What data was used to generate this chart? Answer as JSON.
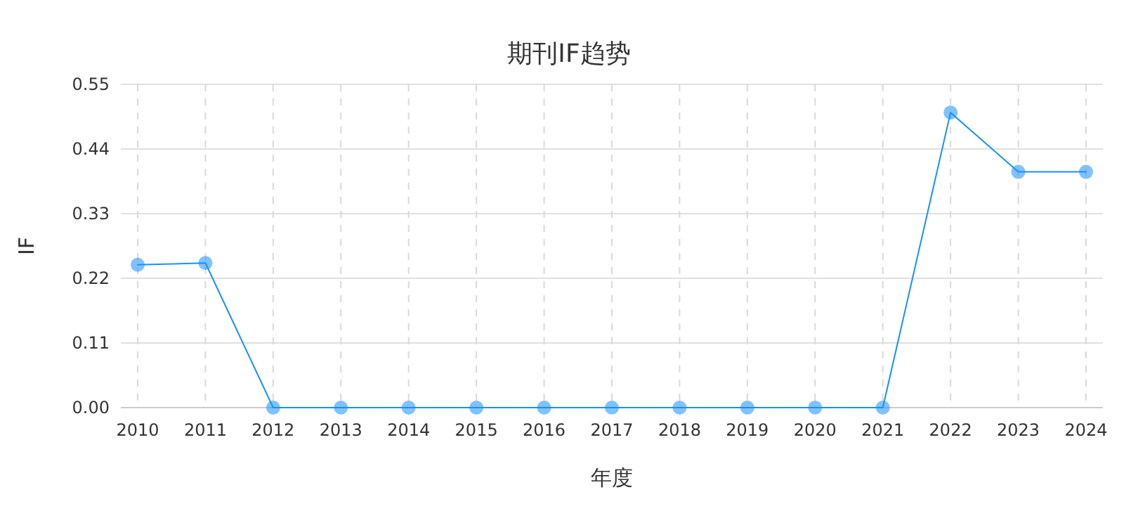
{
  "chart_data": {
    "type": "line",
    "title": "期刊IF趋势",
    "xlabel": "年度",
    "ylabel": "IF",
    "categories": [
      "2010",
      "2011",
      "2012",
      "2013",
      "2014",
      "2015",
      "2016",
      "2017",
      "2018",
      "2019",
      "2020",
      "2021",
      "2022",
      "2023",
      "2024"
    ],
    "series": [
      {
        "color": "#1890ff",
        "values": [
          0.243,
          0.246,
          0,
          0,
          0,
          0,
          0,
          0,
          0,
          0,
          0,
          0,
          0.502,
          0.401,
          0.401
        ]
      }
    ],
    "ylim": [
      0,
      0.55
    ],
    "yticks": [
      {
        "value": 0,
        "label": "0.00"
      },
      {
        "value": 0.11,
        "label": "0.11"
      },
      {
        "value": 0.22,
        "label": "0.22"
      },
      {
        "value": 0.33,
        "label": "0.33"
      },
      {
        "value": 0.44,
        "label": "0.44"
      },
      {
        "value": 0.55,
        "label": "0.55"
      }
    ],
    "grid": true,
    "marker": "circle",
    "line_style": "solid"
  }
}
